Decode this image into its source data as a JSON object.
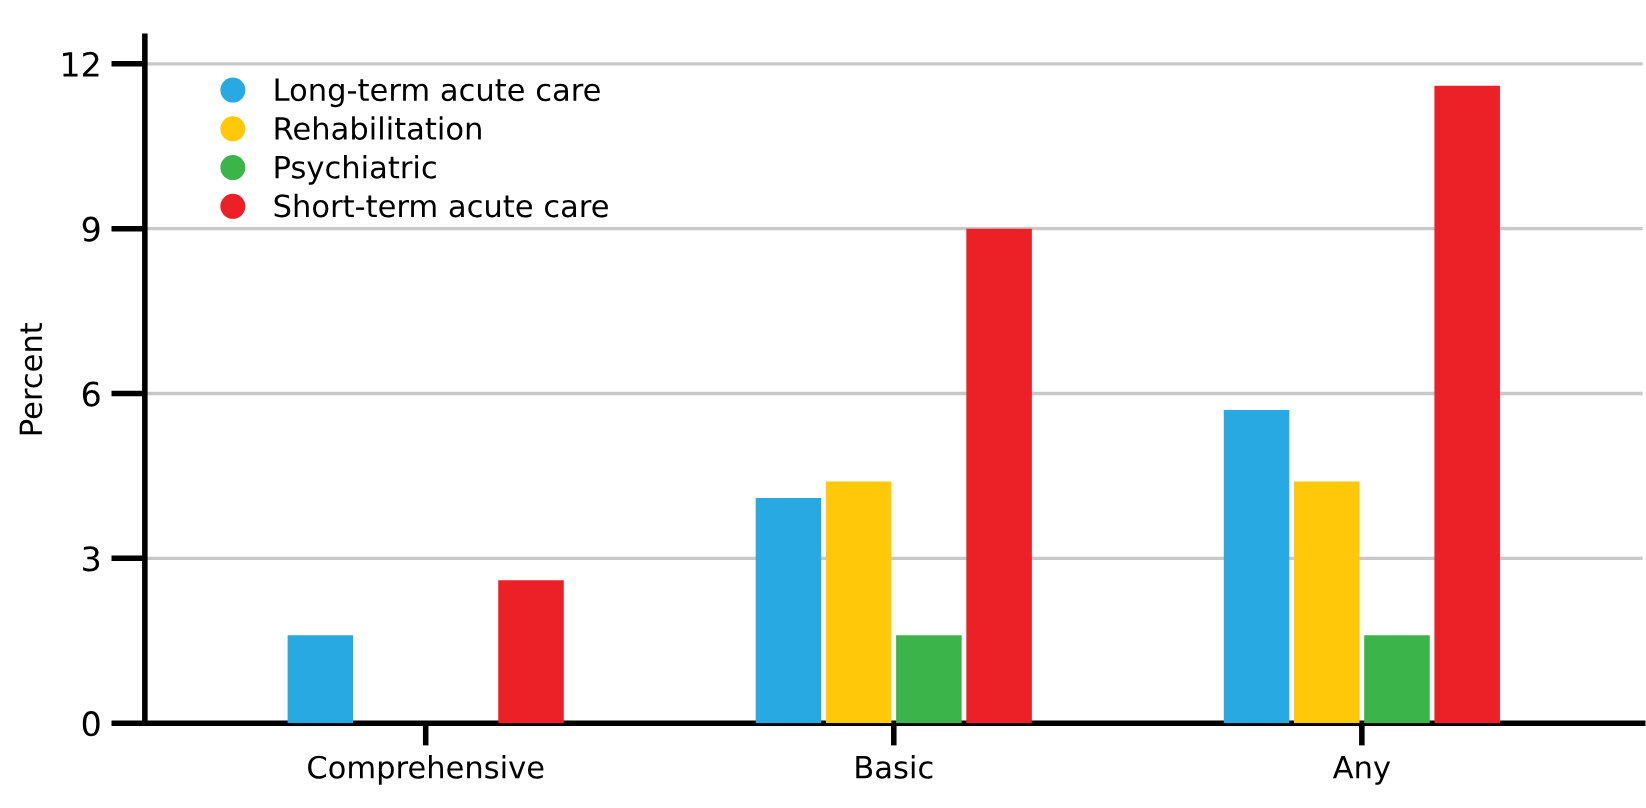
{
  "chart_data": {
    "type": "bar",
    "ylabel": "Percent",
    "categories": [
      "Comprehensive",
      "Basic",
      "Any"
    ],
    "series": [
      {
        "name": "Long-term acute care",
        "color": "#29a9e1",
        "values": [
          1.6,
          4.1,
          5.7
        ]
      },
      {
        "name": "Rehabilitation",
        "color": "#ffc90a",
        "values": [
          0,
          4.4,
          4.4
        ]
      },
      {
        "name": "Psychiatric",
        "color": "#3bb44a",
        "values": [
          0,
          1.6,
          1.6
        ]
      },
      {
        "name": "Short-term acute care",
        "color": "#ec2027",
        "values": [
          2.6,
          9.0,
          11.6
        ]
      }
    ],
    "ylim": [
      0,
      12.5
    ],
    "yticks": [
      0,
      3,
      6,
      9,
      12
    ],
    "grid": "y",
    "legend": "top left",
    "marker": "circle"
  }
}
